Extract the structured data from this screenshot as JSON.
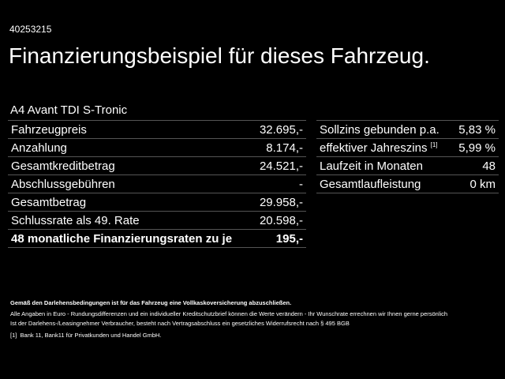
{
  "offer_id": "40253215",
  "title": "Finanzierungsbeispiel für dieses Fahrzeug.",
  "model": "A4 Avant TDI S-Tronic",
  "left_rows": [
    {
      "label": "Fahrzeugpreis",
      "value": "32.695,-"
    },
    {
      "label": "Anzahlung",
      "value": "8.174,-"
    },
    {
      "label": "Gesamtkreditbetrag",
      "value": "24.521,-"
    },
    {
      "label": "Abschlussgebühren",
      "value": "-"
    },
    {
      "label": "Gesamtbetrag",
      "value": "29.958,-"
    },
    {
      "label": "Schlussrate als 49. Rate",
      "value": "20.598,-"
    },
    {
      "label": "48 monatliche Finanzierungsraten zu je",
      "value": "195,-"
    }
  ],
  "right_rows": [
    {
      "label": "Sollzins gebunden p.a.",
      "value": "5,83 %"
    },
    {
      "label": "effektiver Jahreszins",
      "sup": "[1]",
      "value": "5,99 %"
    },
    {
      "label": "Laufzeit in Monaten",
      "value": "48"
    },
    {
      "label": "Gesamtlaufleistung",
      "value": "0 km"
    }
  ],
  "footnotes": {
    "insurance": "Gemäß den Darlehensbedingungen ist für das Fahrzeug eine Vollkaskoversicherung abzuschließen.",
    "line1": "Alle Angaben in Euro - Rundungsdifferenzen und ein individueller Kreditschutzbrief können die Werte verändern - Ihr Wunschrate errechnen wir Ihnen gerne persönlich",
    "line2": "Ist der Darlehens-/Leasingnehmer Verbraucher, besteht nach Vertragsabschluss ein gesetzliches Widerrufsrecht nach § 495 BGB",
    "ref_mark": "[1]",
    "ref_text": "Bank 11, Bank11 für Privatkunden und Handel GmbH."
  }
}
